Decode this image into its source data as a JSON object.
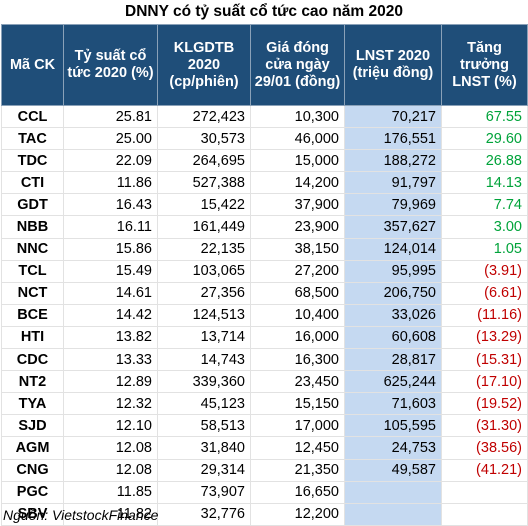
{
  "title": "DNNY có tỷ suất cổ tức cao năm 2020",
  "headers": [
    "Mã CK",
    "Tỷ suất cổ tức 2020 (%)",
    "KLGDTB 2020 (cp/phiên)",
    "Giá đóng cửa ngày 29/01 (đồng)",
    "LNST 2020 (triệu đồng)",
    "Tăng trưởng LNST (%)"
  ],
  "rows": [
    {
      "code": "CCL",
      "yield": "25.81",
      "vol": "272,423",
      "price": "10,300",
      "lnst": "70,217",
      "growth": "67.55",
      "sign": "pos"
    },
    {
      "code": "TAC",
      "yield": "25.00",
      "vol": "30,573",
      "price": "46,000",
      "lnst": "176,551",
      "growth": "29.60",
      "sign": "pos"
    },
    {
      "code": "TDC",
      "yield": "22.09",
      "vol": "264,695",
      "price": "15,000",
      "lnst": "188,272",
      "growth": "26.88",
      "sign": "pos"
    },
    {
      "code": "CTI",
      "yield": "11.86",
      "vol": "527,388",
      "price": "14,200",
      "lnst": "91,797",
      "growth": "14.13",
      "sign": "pos"
    },
    {
      "code": "GDT",
      "yield": "16.43",
      "vol": "15,422",
      "price": "37,900",
      "lnst": "79,969",
      "growth": "7.74",
      "sign": "pos"
    },
    {
      "code": "NBB",
      "yield": "16.11",
      "vol": "161,449",
      "price": "23,900",
      "lnst": "357,627",
      "growth": "3.00",
      "sign": "pos"
    },
    {
      "code": "NNC",
      "yield": "15.86",
      "vol": "22,135",
      "price": "38,150",
      "lnst": "124,014",
      "growth": "1.05",
      "sign": "pos"
    },
    {
      "code": "TCL",
      "yield": "15.49",
      "vol": "103,065",
      "price": "27,200",
      "lnst": "95,995",
      "growth": "(3.91)",
      "sign": "neg"
    },
    {
      "code": "NCT",
      "yield": "14.61",
      "vol": "27,356",
      "price": "68,500",
      "lnst": "206,750",
      "growth": "(6.61)",
      "sign": "neg"
    },
    {
      "code": "BCE",
      "yield": "14.42",
      "vol": "124,513",
      "price": "10,400",
      "lnst": "33,026",
      "growth": "(11.16)",
      "sign": "neg"
    },
    {
      "code": "HTI",
      "yield": "13.82",
      "vol": "13,714",
      "price": "16,000",
      "lnst": "60,608",
      "growth": "(13.29)",
      "sign": "neg"
    },
    {
      "code": "CDC",
      "yield": "13.33",
      "vol": "14,743",
      "price": "16,300",
      "lnst": "28,817",
      "growth": "(15.31)",
      "sign": "neg"
    },
    {
      "code": "NT2",
      "yield": "12.89",
      "vol": "339,360",
      "price": "23,450",
      "lnst": "625,244",
      "growth": "(17.10)",
      "sign": "neg"
    },
    {
      "code": "TYA",
      "yield": "12.32",
      "vol": "45,123",
      "price": "15,150",
      "lnst": "71,603",
      "growth": "(19.52)",
      "sign": "neg"
    },
    {
      "code": "SJD",
      "yield": "12.10",
      "vol": "58,513",
      "price": "17,000",
      "lnst": "105,595",
      "growth": "(31.30)",
      "sign": "neg"
    },
    {
      "code": "AGM",
      "yield": "12.08",
      "vol": "31,840",
      "price": "12,450",
      "lnst": "24,753",
      "growth": "(38.56)",
      "sign": "neg"
    },
    {
      "code": "CNG",
      "yield": "12.08",
      "vol": "29,314",
      "price": "21,350",
      "lnst": "49,587",
      "growth": "(41.21)",
      "sign": "neg"
    },
    {
      "code": "PGC",
      "yield": "11.85",
      "vol": "73,907",
      "price": "16,650",
      "lnst": "",
      "growth": "",
      "sign": ""
    },
    {
      "code": "SBV",
      "yield": "11.82",
      "vol": "32,776",
      "price": "12,200",
      "lnst": "",
      "growth": "",
      "sign": ""
    }
  ],
  "source": "Nguồn: VietstockFinance",
  "colors": {
    "header_bg": "#1f4e79",
    "lnst_bg": "#c5d9f1",
    "positive": "#00a33a",
    "negative": "#c00000"
  }
}
